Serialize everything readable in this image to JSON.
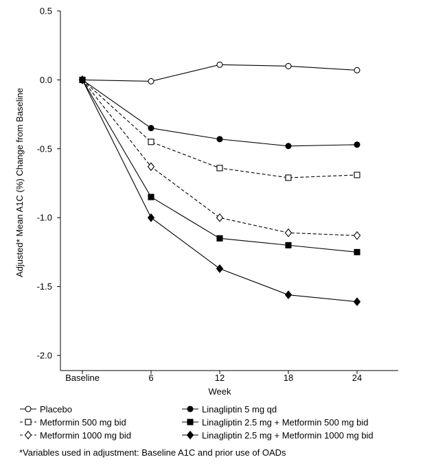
{
  "chart_data": {
    "type": "line",
    "title": "",
    "xlabel": "Week",
    "ylabel": "Adjusted* Mean A1C (%) Change from Baseline",
    "categories": [
      "Baseline",
      "6",
      "12",
      "18",
      "24"
    ],
    "x_weeks": [
      0,
      6,
      12,
      18,
      24
    ],
    "ylim": [
      -2.0,
      0.5
    ],
    "yticks": [
      "0.5",
      "0.0",
      "-0.5",
      "-1.0",
      "-1.5",
      "-2.0"
    ],
    "ytick_values": [
      0.5,
      0.0,
      -0.5,
      -1.0,
      -1.5,
      -2.0
    ],
    "grid": false,
    "legend_position": "bottom",
    "series": [
      {
        "name": "Placebo",
        "values": [
          0.0,
          -0.01,
          0.11,
          0.1,
          0.07
        ],
        "marker": "circle",
        "filled": false,
        "dashed": false
      },
      {
        "name": "Metformin 500 mg bid",
        "values": [
          0.0,
          -0.45,
          -0.64,
          -0.71,
          -0.69
        ],
        "marker": "square",
        "filled": false,
        "dashed": true
      },
      {
        "name": "Metformin 1000 mg bid",
        "values": [
          0.0,
          -0.63,
          -1.0,
          -1.11,
          -1.13
        ],
        "marker": "diamond",
        "filled": false,
        "dashed": true
      },
      {
        "name": "Linagliptin 5 mg qd",
        "values": [
          0.0,
          -0.35,
          -0.43,
          -0.48,
          -0.47
        ],
        "marker": "circle",
        "filled": true,
        "dashed": false
      },
      {
        "name": "Linagliptin 2.5 mg + Metformin 500 mg bid",
        "values": [
          0.0,
          -0.85,
          -1.15,
          -1.2,
          -1.25
        ],
        "marker": "square",
        "filled": true,
        "dashed": false
      },
      {
        "name": "Linagliptin 2.5 mg + Metformin 1000 mg bid",
        "values": [
          0.0,
          -1.0,
          -1.37,
          -1.56,
          -1.61
        ],
        "marker": "diamond",
        "filled": true,
        "dashed": false
      }
    ]
  },
  "footnote": "*Variables used in adjustment: Baseline A1C and prior use of OADs"
}
